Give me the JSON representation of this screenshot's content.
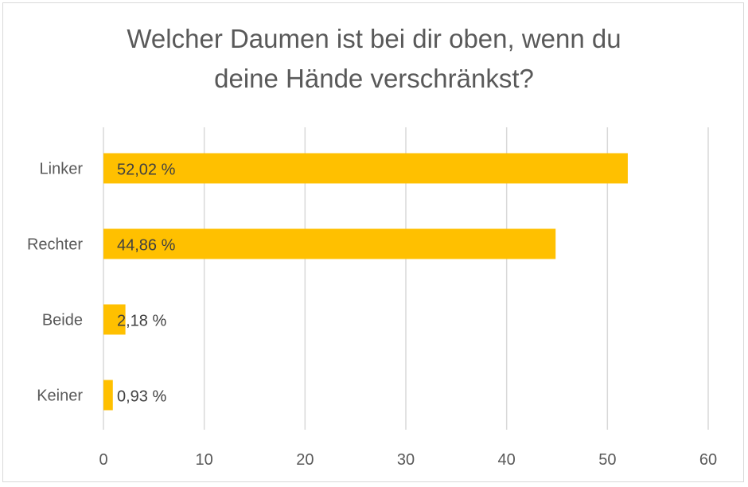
{
  "chart_data": {
    "type": "bar",
    "orientation": "horizontal",
    "title_lines": [
      "Welcher Daumen ist bei dir oben, wenn du",
      "deine Hände verschränkst?"
    ],
    "categories": [
      "Linker",
      "Rechter",
      "Beide",
      "Keiner"
    ],
    "values": [
      52.02,
      44.86,
      2.18,
      0.93
    ],
    "data_labels": [
      "52,02 %",
      "44,86 %",
      "2,18 %",
      "0,93 %"
    ],
    "xlim": [
      0,
      60
    ],
    "x_ticks": [
      "0",
      "10",
      "20",
      "30",
      "40",
      "50",
      "60"
    ],
    "grid": "vertical",
    "legend": "none",
    "bar_color": "#FFC000",
    "xlabel": "",
    "ylabel": ""
  }
}
